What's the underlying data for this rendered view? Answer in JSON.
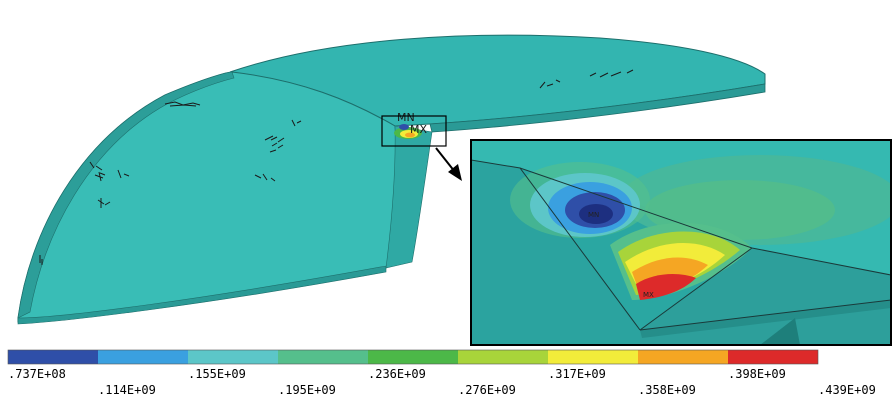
{
  "markers": {
    "min_label": "MN",
    "max_label": "MX"
  },
  "legend": {
    "colors": [
      "#2f4fa8",
      "#3aa0e0",
      "#5cc6c8",
      "#55bf8c",
      "#4cb848",
      "#a8d43a",
      "#f2ec3a",
      "#f5a623",
      "#dd2a2a"
    ],
    "ticks": [
      ".737E+08",
      ".114E+09",
      ".155E+09",
      ".195E+09",
      ".236E+09",
      ".276E+09",
      ".317E+09",
      ".358E+09",
      ".398E+09",
      ".439E+09"
    ]
  }
}
